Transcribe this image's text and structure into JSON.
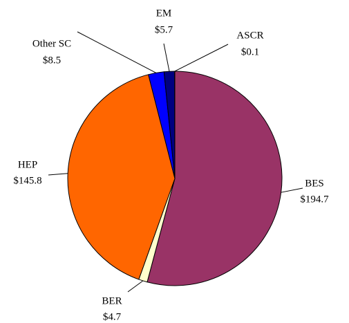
{
  "chart_data": {
    "type": "pie",
    "categories": [
      "BES",
      "BER",
      "HEP",
      "Other SC",
      "EM",
      "ASCR"
    ],
    "values": [
      194.7,
      4.7,
      145.8,
      8.5,
      5.7,
      0.1
    ],
    "value_labels": [
      "$194.7",
      "$4.7",
      "$145.8",
      "$8.5",
      "$5.7",
      "$0.1"
    ],
    "colors": [
      "#993366",
      "#ffffcc",
      "#ff6600",
      "#0000ff",
      "#000080",
      "#000066"
    ]
  }
}
